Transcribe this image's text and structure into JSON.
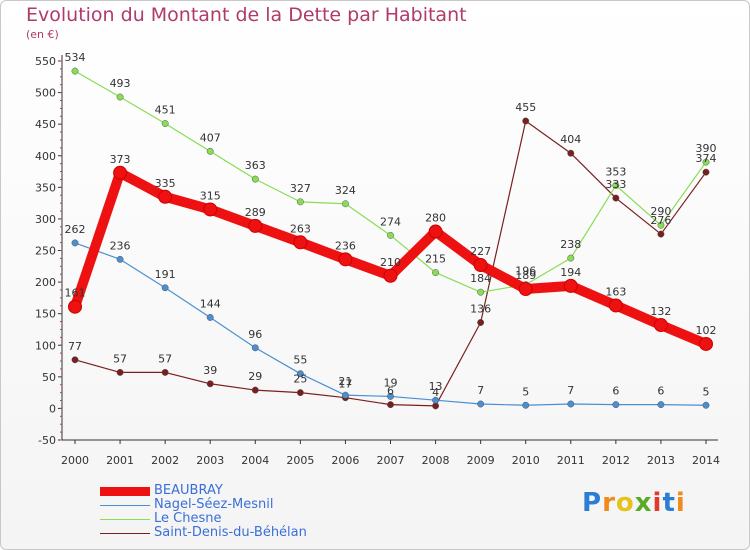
{
  "chart_data": {
    "type": "line",
    "title": "Evolution du Montant de la Dette par Habitant",
    "subtitle": "(en €)",
    "xlabel": "",
    "ylabel": "",
    "x": [
      "2000",
      "2001",
      "2002",
      "2003",
      "2004",
      "2005",
      "2006",
      "2007",
      "2008",
      "2009",
      "2010",
      "2011",
      "2012",
      "2013",
      "2014"
    ],
    "ylim": [
      -50,
      550
    ],
    "yticks": [
      -50,
      0,
      50,
      100,
      150,
      200,
      250,
      300,
      350,
      400,
      450,
      500,
      550
    ],
    "grid": false,
    "legend_position": "bottom-left",
    "series": [
      {
        "name": "BEAUBRAY",
        "color": "#ee1111",
        "values": [
          161,
          373,
          335,
          315,
          289,
          263,
          236,
          210,
          280,
          227,
          189,
          194,
          163,
          132,
          102
        ],
        "labels": [
          "161",
          "373",
          "335",
          "315",
          "289",
          "263",
          "236",
          "210",
          "280",
          "227",
          "189",
          "194",
          "163",
          "132",
          "102"
        ]
      },
      {
        "name": "Nagel-Séez-Mesnil",
        "color": "#4a8fd0",
        "values": [
          262,
          236,
          191,
          144,
          96,
          55,
          21,
          19,
          13,
          7,
          5,
          7,
          6,
          6,
          5
        ],
        "labels": [
          "262",
          "236",
          "191",
          "144",
          "96",
          "55",
          "21",
          "19",
          "13",
          "7",
          "5",
          "7",
          "6",
          "6",
          "5"
        ]
      },
      {
        "name": "Le Chesne",
        "color": "#88dd55",
        "values": [
          534,
          493,
          451,
          407,
          363,
          327,
          324,
          274,
          215,
          184,
          196,
          238,
          353,
          290,
          390
        ],
        "labels": [
          "534",
          "493",
          "451",
          "407",
          "363",
          "327",
          "324",
          "274",
          "215",
          "184",
          "196",
          "238",
          "353",
          "290",
          "390"
        ]
      },
      {
        "name": "Saint-Denis-du-Béhélan",
        "color": "#7a1f1f",
        "values": [
          77,
          57,
          57,
          39,
          29,
          25,
          17,
          6,
          4,
          136,
          455,
          404,
          333,
          276,
          374
        ],
        "labels": [
          "77",
          "57",
          "57",
          "39",
          "29",
          "25",
          "17",
          "6",
          "4",
          "136",
          "455",
          "404",
          "333",
          "276",
          "374"
        ]
      }
    ]
  },
  "logo": {
    "text": "Proxiti",
    "letters": [
      {
        "ch": "P",
        "color": "#2a7fd4"
      },
      {
        "ch": "r",
        "color": "#f08a1c"
      },
      {
        "ch": "o",
        "color": "#e8c21c"
      },
      {
        "ch": "x",
        "color": "#5aaa2a"
      },
      {
        "ch": "i",
        "color": "#e23a2a"
      },
      {
        "ch": "t",
        "color": "#2a7fd4"
      },
      {
        "ch": "i",
        "color": "#f08a1c"
      }
    ]
  }
}
